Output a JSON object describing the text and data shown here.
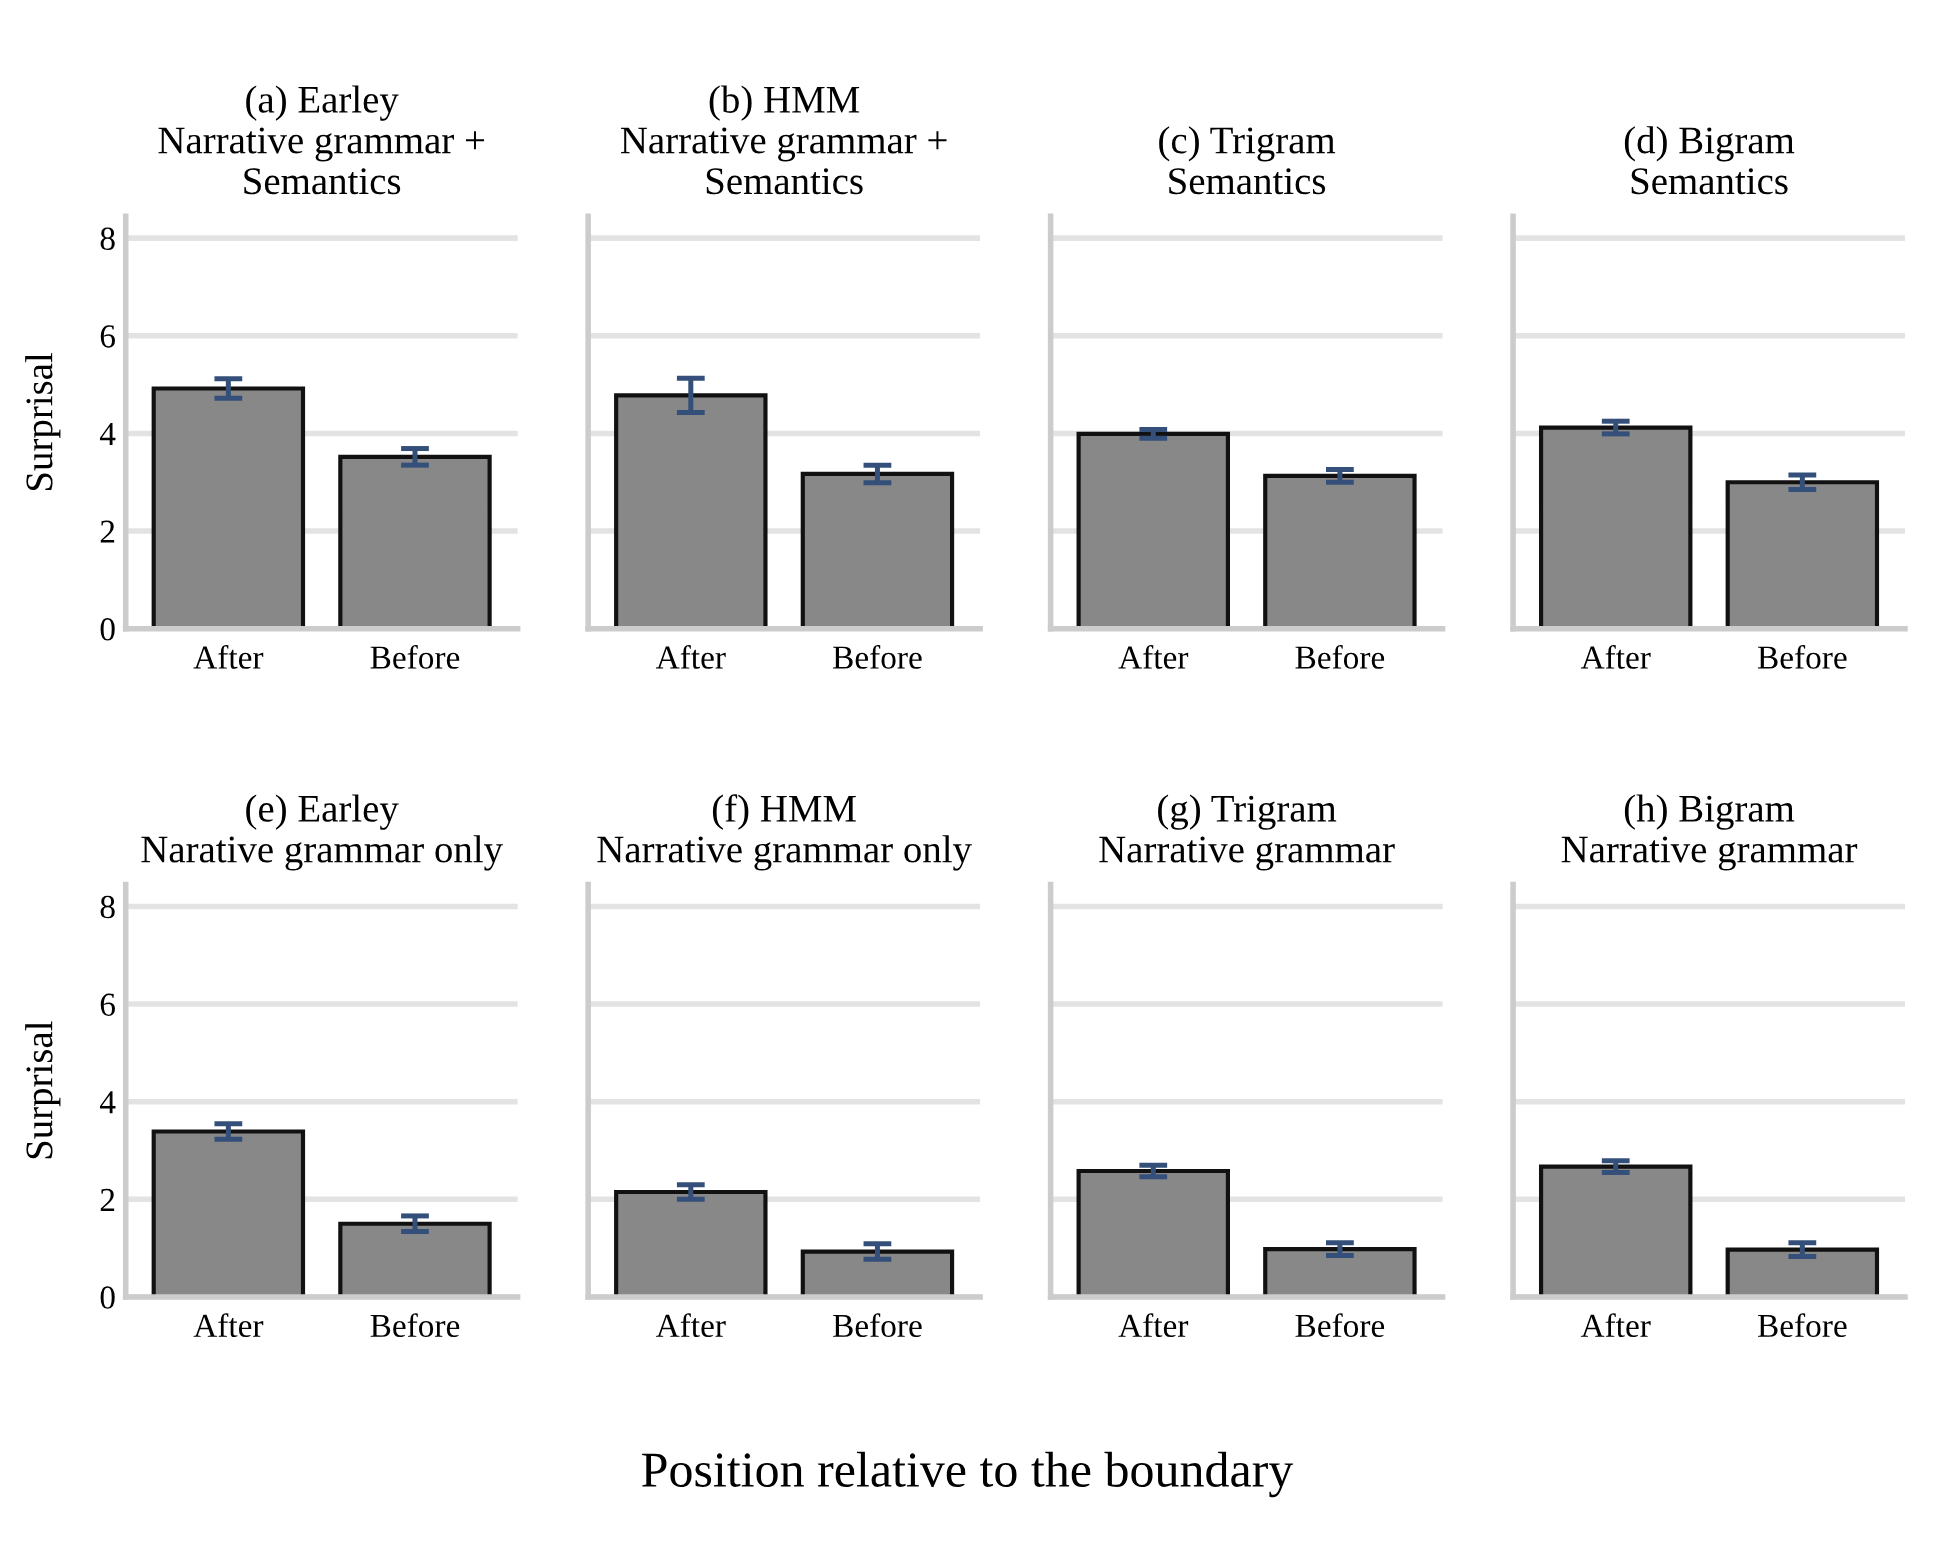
{
  "chart_data": [
    {
      "type": "bar",
      "title": "(a) Earley\nNarrative grammar +\nSemantics",
      "ylabel": "Surprisal",
      "categories": [
        "After",
        "Before"
      ],
      "values": [
        4.92,
        3.52
      ],
      "errors": [
        0.2,
        0.17
      ],
      "color": "#888888",
      "ylim": [
        0,
        8.45
      ],
      "yticks": [
        0,
        2,
        4,
        6,
        8
      ],
      "grid": "y"
    },
    {
      "type": "bar",
      "title": "(b) HMM\nNarrative grammar +\nSemantics",
      "categories": [
        "After",
        "Before"
      ],
      "values": [
        4.78,
        3.17
      ],
      "errors": [
        0.35,
        0.18
      ],
      "color": "#888888",
      "ylim": [
        0,
        8.45
      ],
      "yticks": [
        0,
        2,
        4,
        6,
        8
      ],
      "grid": "y",
      "tick_labels": "x"
    },
    {
      "type": "bar",
      "title": "(c) Trigram\nSemantics",
      "categories": [
        "After",
        "Before"
      ],
      "values": [
        3.99,
        3.13
      ],
      "errors": [
        0.09,
        0.13
      ],
      "color": "#888888",
      "ylim": [
        0,
        8.45
      ],
      "yticks": [
        0,
        2,
        4,
        6,
        8
      ],
      "grid": "y",
      "tick_labels": "x"
    },
    {
      "type": "bar",
      "title": "(d) Bigram\nSemantics",
      "categories": [
        "After",
        "Before"
      ],
      "values": [
        4.12,
        3.0
      ],
      "errors": [
        0.13,
        0.15
      ],
      "color": "#888888",
      "ylim": [
        0,
        8.45
      ],
      "yticks": [
        0,
        2,
        4,
        6,
        8
      ],
      "grid": "y",
      "tick_labels": "x"
    },
    {
      "type": "bar",
      "title": "(e) Earley\nNarative grammar only",
      "ylabel": "Surprisal",
      "xlabel": "Position relative to the boundary",
      "categories": [
        "After",
        "Before"
      ],
      "values": [
        3.39,
        1.5
      ],
      "errors": [
        0.16,
        0.16
      ],
      "color": "#888888",
      "ylim": [
        0,
        8.45
      ],
      "yticks": [
        0,
        2,
        4,
        6,
        8
      ],
      "grid": "y"
    },
    {
      "type": "bar",
      "title": "(f) HMM\nNarrative grammar only",
      "categories": [
        "After",
        "Before"
      ],
      "values": [
        2.15,
        0.93
      ],
      "errors": [
        0.15,
        0.16
      ],
      "color": "#888888",
      "ylim": [
        0,
        8.45
      ],
      "yticks": [
        0,
        2,
        4,
        6,
        8
      ],
      "grid": "y",
      "tick_labels": "x"
    },
    {
      "type": "bar",
      "title": "(g) Trigram\nNarrative grammar",
      "categories": [
        "After",
        "Before"
      ],
      "values": [
        2.58,
        0.98
      ],
      "errors": [
        0.12,
        0.13
      ],
      "color": "#888888",
      "ylim": [
        0,
        8.45
      ],
      "yticks": [
        0,
        2,
        4,
        6,
        8
      ],
      "grid": "y",
      "tick_labels": "x"
    },
    {
      "type": "bar",
      "title": "(h) Bigram\nNarrative grammar",
      "categories": [
        "After",
        "Before"
      ],
      "values": [
        2.67,
        0.97
      ],
      "errors": [
        0.12,
        0.14
      ],
      "color": "#888888",
      "ylim": [
        0,
        8.45
      ],
      "yticks": [
        0,
        2,
        4,
        6,
        8
      ],
      "grid": "y",
      "tick_labels": "x"
    }
  ]
}
